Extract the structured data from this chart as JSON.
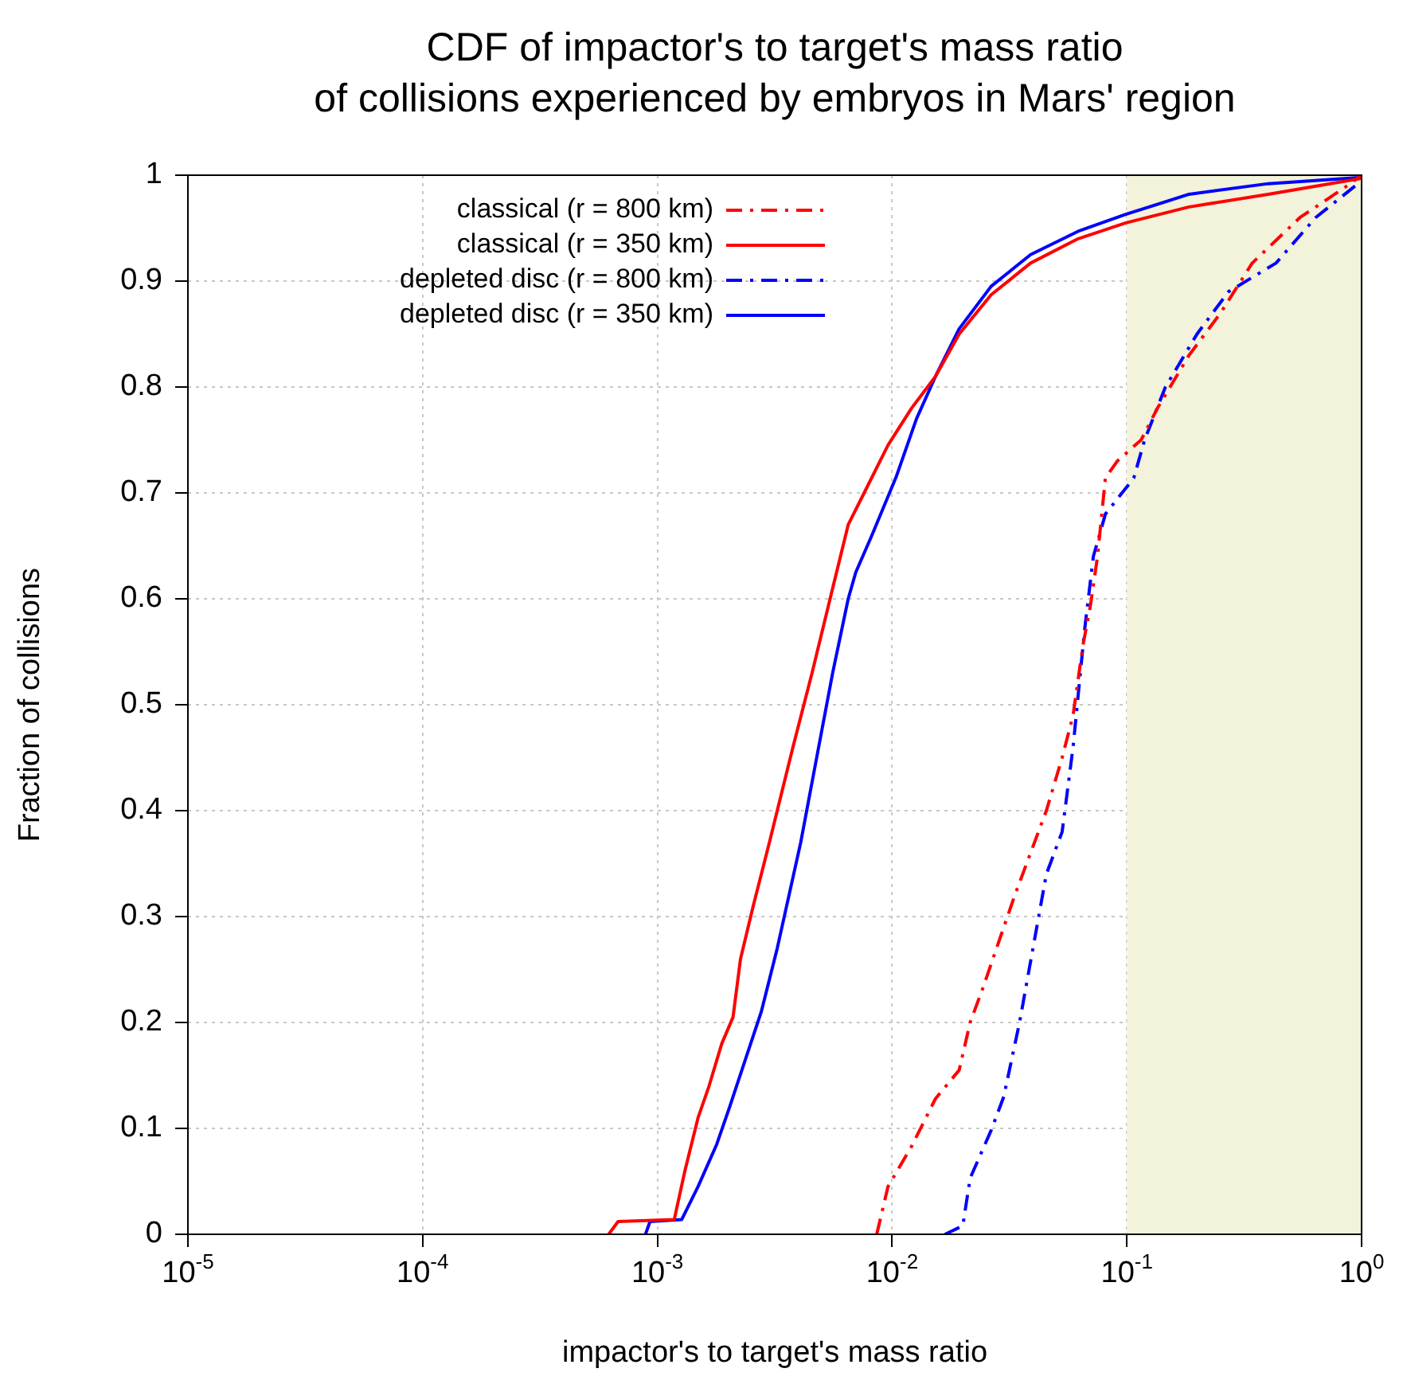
{
  "chart_data": {
    "type": "line",
    "title": "CDF of impactor's to target's mass ratio\nof collisions experienced by embryos in Mars' region",
    "xlabel": "impactor's to target's mass ratio",
    "ylabel": "Fraction of collisions",
    "log": "x",
    "xlim": [
      1e-05,
      1
    ],
    "xticks": [
      {
        "value": 1e-05,
        "label": "10$^{-5}$"
      },
      {
        "value": 0.0001,
        "label": "10$^{-4}$"
      },
      {
        "value": 0.001,
        "label": "10$^{-3}$"
      },
      {
        "value": 0.01,
        "label": "10$^{-2}$"
      },
      {
        "value": 0.1,
        "label": "10$^{-1}$"
      },
      {
        "value": 1,
        "label": "10$^{0}$"
      }
    ],
    "ylim": [
      0,
      1
    ],
    "yticks": [
      0,
      0.1,
      0.2,
      0.3,
      0.4,
      0.5,
      0.6,
      0.7,
      0.8,
      0.9,
      1
    ],
    "grid": true,
    "legend": "top left",
    "marker": "none",
    "bands": [
      {
        "axis": "x",
        "from": 0.1,
        "to": 1,
        "color": "#f3f2da"
      }
    ],
    "series": [
      {
        "name": "classical (r = 800 km)",
        "color": "#ff0000",
        "line_style": "dashdot",
        "x": [
          0.0086,
          0.0096,
          0.0121,
          0.0153,
          0.0193,
          0.0215,
          0.0244,
          0.0333,
          0.0454,
          0.053,
          0.059,
          0.065,
          0.07,
          0.075,
          0.081,
          0.091,
          0.115,
          0.135,
          0.184,
          0.251,
          0.342,
          0.546,
          0.869,
          1
        ],
        "values": [
          0,
          0.045,
          0.083,
          0.128,
          0.155,
          0.2,
          0.233,
          0.32,
          0.4,
          0.45,
          0.49,
          0.556,
          0.594,
          0.64,
          0.714,
          0.73,
          0.75,
          0.78,
          0.83,
          0.87,
          0.917,
          0.96,
          0.99,
          1
        ]
      },
      {
        "name": "classical (r = 350 km)",
        "color": "#ff0000",
        "line_style": "solid",
        "x": [
          0.00062,
          0.00068,
          0.00118,
          0.00131,
          0.00149,
          0.00166,
          0.00188,
          0.0021,
          0.00226,
          0.00256,
          0.003,
          0.00378,
          0.00456,
          0.00558,
          0.0065,
          0.0076,
          0.0096,
          0.0121,
          0.0153,
          0.0193,
          0.0264,
          0.0389,
          0.062,
          0.099,
          0.184,
          0.4,
          1
        ],
        "values": [
          0,
          0.012,
          0.014,
          0.06,
          0.11,
          0.14,
          0.18,
          0.205,
          0.26,
          0.31,
          0.37,
          0.46,
          0.53,
          0.61,
          0.67,
          0.7,
          0.745,
          0.78,
          0.81,
          0.85,
          0.887,
          0.917,
          0.94,
          0.955,
          0.97,
          0.982,
          0.997
        ]
      },
      {
        "name": "depleted disc (r = 800 km)",
        "color": "#0000ff",
        "line_style": "dashdot",
        "x": [
          0.0168,
          0.02,
          0.0215,
          0.0264,
          0.0299,
          0.0349,
          0.0454,
          0.053,
          0.059,
          0.066,
          0.072,
          0.081,
          0.107,
          0.119,
          0.146,
          0.199,
          0.271,
          0.432,
          0.637,
          0.94,
          1
        ],
        "values": [
          0,
          0.008,
          0.053,
          0.098,
          0.13,
          0.2,
          0.34,
          0.38,
          0.46,
          0.57,
          0.64,
          0.68,
          0.714,
          0.75,
          0.8,
          0.85,
          0.89,
          0.917,
          0.96,
          0.99,
          1
        ]
      },
      {
        "name": "depleted disc (r = 350 km)",
        "color": "#0000ff",
        "line_style": "solid",
        "x": [
          0.00089,
          0.00093,
          0.00127,
          0.00149,
          0.00179,
          0.00203,
          0.00237,
          0.00277,
          0.00324,
          0.00408,
          0.00477,
          0.00558,
          0.0065,
          0.007,
          0.0082,
          0.0104,
          0.0127,
          0.0153,
          0.0193,
          0.0264,
          0.0389,
          0.062,
          0.099,
          0.184,
          0.4,
          1
        ],
        "values": [
          0,
          0.012,
          0.014,
          0.045,
          0.085,
          0.12,
          0.165,
          0.21,
          0.27,
          0.37,
          0.45,
          0.53,
          0.6,
          0.625,
          0.66,
          0.715,
          0.77,
          0.81,
          0.855,
          0.895,
          0.925,
          0.947,
          0.963,
          0.982,
          0.992,
          0.998
        ]
      }
    ]
  }
}
